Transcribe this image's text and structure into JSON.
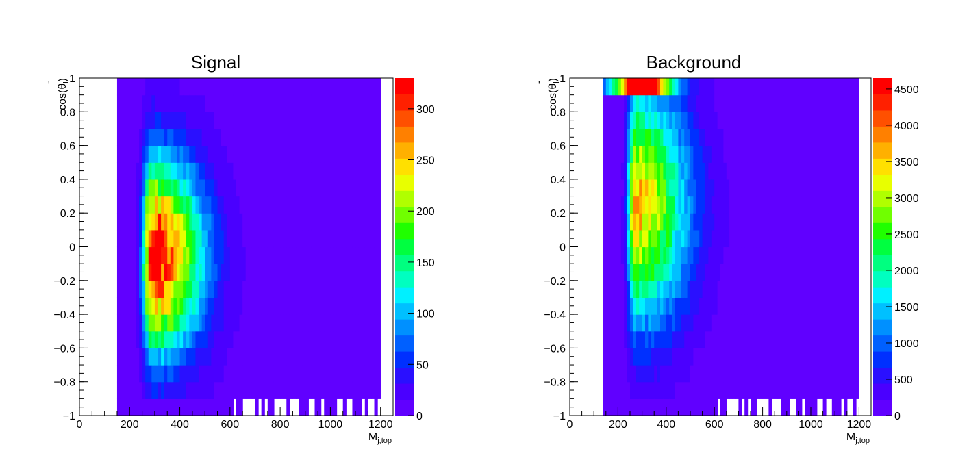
{
  "chart_data": [
    {
      "type": "heatmap",
      "title": "Signal",
      "xlabel_main": "M",
      "xlabel_sub": "j,top",
      "ylabel": "cos(θ",
      "ylabel_sub": "l",
      "ylabel_tail": ")",
      "xlim": [
        0,
        1250
      ],
      "ylim": [
        -1,
        1
      ],
      "x_ticks": [
        0,
        200,
        400,
        600,
        800,
        1000,
        1200
      ],
      "y_ticks": [
        -1,
        -0.8,
        -0.6,
        -0.4,
        -0.2,
        0,
        0.2,
        0.4,
        0.6,
        0.8,
        1
      ],
      "y_tick_labels": [
        "−1",
        "−0.8",
        "−0.6",
        "−0.4",
        "−0.2",
        "0",
        "0.2",
        "0.4",
        "0.6",
        "0.8",
        "1"
      ],
      "colorbar": {
        "min": 0,
        "max": 330,
        "ticks": [
          0,
          50,
          100,
          150,
          200,
          250,
          300
        ]
      },
      "density_model": {
        "x_start": 150,
        "x_peak": 290,
        "x_width_low": 35,
        "x_width_high": 190,
        "y_center": -0.05,
        "y_width": 0.55,
        "peak_value": 320,
        "top_row_boost": 1.0,
        "floor_value": 8
      }
    },
    {
      "type": "heatmap",
      "title": "Background",
      "xlabel_main": "M",
      "xlabel_sub": "j,top",
      "ylabel": "cos(θ",
      "ylabel_sub": "l",
      "ylabel_tail": ")",
      "xlim": [
        0,
        1250
      ],
      "ylim": [
        -1,
        1
      ],
      "x_ticks": [
        0,
        200,
        400,
        600,
        800,
        1000,
        1200
      ],
      "y_ticks": [
        -1,
        -0.8,
        -0.6,
        -0.4,
        -0.2,
        0,
        0.2,
        0.4,
        0.6,
        0.8,
        1
      ],
      "y_tick_labels": [
        "−1",
        "−0.8",
        "−0.6",
        "−0.4",
        "−0.2",
        "0",
        "0.2",
        "0.4",
        "0.6",
        "0.8",
        "1"
      ],
      "colorbar": {
        "min": 0,
        "max": 4650,
        "ticks": [
          0,
          500,
          1000,
          1500,
          2000,
          2500,
          3000,
          3500,
          4000,
          4500
        ]
      },
      "density_model": {
        "x_start": 140,
        "x_peak": 270,
        "x_width_low": 30,
        "x_width_high": 220,
        "y_center": 0.25,
        "y_width": 0.7,
        "peak_value": 3400,
        "top_row_boost": 4500,
        "floor_value": 60
      }
    }
  ]
}
